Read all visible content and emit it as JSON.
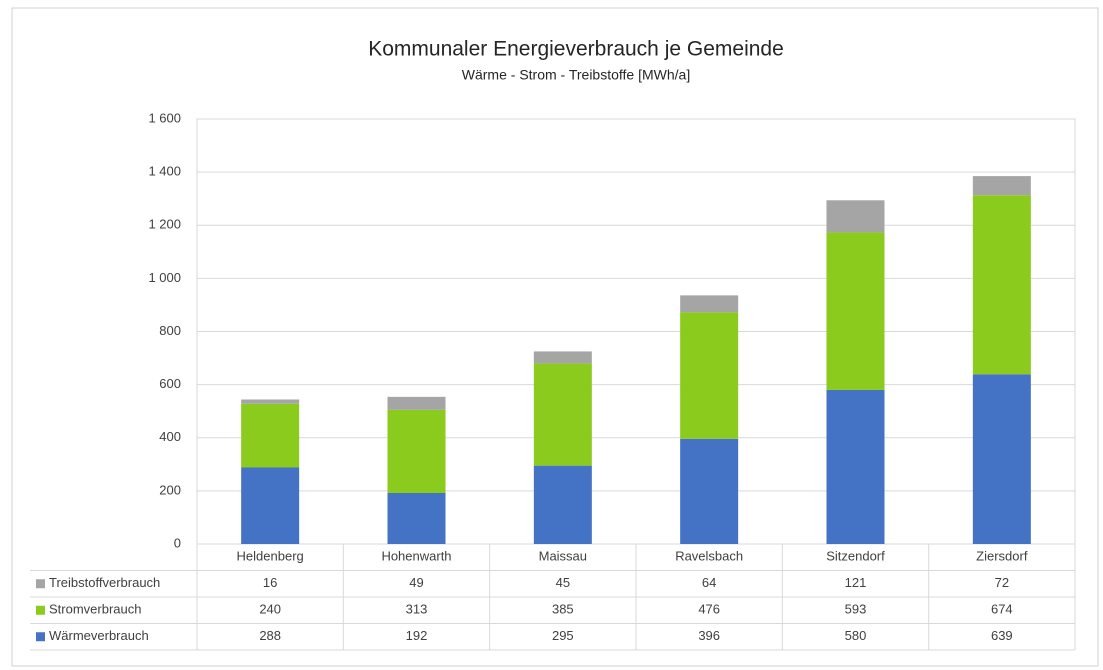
{
  "chart_data": {
    "type": "bar",
    "stacked": true,
    "title": "Kommunaler Energieverbrauch je Gemeinde",
    "subtitle": "Wärme - Strom - Treibstoffe [MWh/a]",
    "categories": [
      "Heldenberg",
      "Hohenwarth",
      "Maissau",
      "Ravelsbach",
      "Sitzendorf",
      "Ziersdorf"
    ],
    "series": [
      {
        "name": "Wärmeverbrauch",
        "color": "#4472c4",
        "values": [
          288,
          192,
          295,
          396,
          580,
          639
        ]
      },
      {
        "name": "Stromverbrauch",
        "color": "#8acb1e",
        "values": [
          240,
          313,
          385,
          476,
          593,
          674
        ]
      },
      {
        "name": "Treibstoffverbrauch",
        "color": "#a5a5a5",
        "values": [
          16,
          49,
          45,
          64,
          121,
          72
        ]
      }
    ],
    "ylim": [
      0,
      1600
    ],
    "yticks": [
      0,
      200,
      400,
      600,
      800,
      {
        "value": 1000,
        "label": "1 000"
      },
      {
        "value": 1200,
        "label": "1 200"
      },
      {
        "value": 1400,
        "label": "1 400"
      },
      {
        "value": 1600,
        "label": "1 600"
      }
    ],
    "grid": true,
    "data_table": true
  }
}
